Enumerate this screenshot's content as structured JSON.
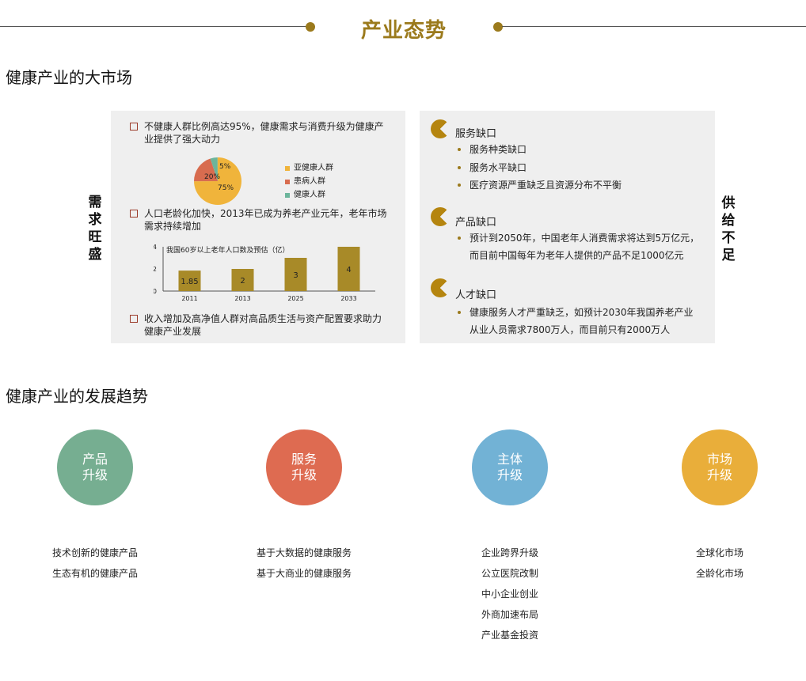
{
  "header": {
    "title": "产业态势"
  },
  "section1": {
    "title": "健康产业的大市场"
  },
  "section2": {
    "title": "健康产业的发展趋势"
  },
  "side_labels": {
    "demand": [
      "需",
      "求",
      "旺",
      "盛"
    ],
    "supply": [
      "供",
      "给",
      "不",
      "足"
    ]
  },
  "demand_panel": {
    "point1": [
      "不健康人群比例高达95%，健康需求与消费升级为健康产",
      "业提供了强大动力"
    ],
    "point2": [
      "人口老龄化加快，2013年已成为养老产业元年，老年市场",
      "需求持续增加"
    ],
    "point3": [
      "收入增加及高净值人群对高品质生活与资产配置要求助力",
      "健康产业发展"
    ]
  },
  "chart_data": [
    {
      "type": "pie",
      "slices": [
        {
          "name": "亚健康人群",
          "value": 75,
          "label": "75%",
          "color": "#f0b43b"
        },
        {
          "name": "患病人群",
          "value": 20,
          "label": "20%",
          "color": "#d86c4f"
        },
        {
          "name": "健康人群",
          "value": 5,
          "label": "5%",
          "color": "#6cb59b"
        }
      ]
    },
    {
      "type": "bar",
      "title": "我国60岁以上老年人口数及预估（亿）",
      "categories": [
        "2011",
        "2013",
        "2025",
        "2033"
      ],
      "values": [
        1.85,
        2,
        3,
        4
      ],
      "value_labels": [
        "1.85",
        "2",
        "3",
        "4"
      ],
      "ylim": [
        0,
        4
      ],
      "yticks": [
        "0",
        "2",
        "4"
      ],
      "color": "#a88a28",
      "legend": "none"
    }
  ],
  "supply_panel": {
    "service_gap": {
      "title": "服务缺口",
      "items": [
        "服务种类缺口",
        "服务水平缺口",
        "医疗资源严重缺乏且资源分布不平衡"
      ]
    },
    "product_gap": {
      "title": "产品缺口",
      "items": [
        [
          "预计到2050年，中国老年人消费需求将达到5万亿元，",
          "而目前中国每年为老年人提供的产品不足1000亿元"
        ]
      ]
    },
    "talent_gap": {
      "title": "人才缺口",
      "items": [
        [
          "健康服务人才严重缺乏，如预计2030年我国养老产业",
          "从业人员需求7800万人，而目前只有2000万人"
        ]
      ]
    }
  },
  "trends": [
    {
      "line1": "产品",
      "line2": "升级",
      "color": "#76ae91",
      "items": [
        "技术创新的健康产品",
        "生态有机的健康产品"
      ]
    },
    {
      "line1": "服务",
      "line2": "升级",
      "color": "#de6b51",
      "items": [
        "基于大数据的健康服务",
        "基于大商业的健康服务"
      ]
    },
    {
      "line1": "主体",
      "line2": "升级",
      "color": "#72b2d5",
      "items": [
        "企业跨界升级",
        "公立医院改制",
        "中小企业创业",
        "外商加速布局",
        "产业基金投资"
      ]
    },
    {
      "line1": "市场",
      "line2": "升级",
      "color": "#e9ae3a",
      "items": [
        "全球化市场",
        "全龄化市场"
      ]
    }
  ]
}
